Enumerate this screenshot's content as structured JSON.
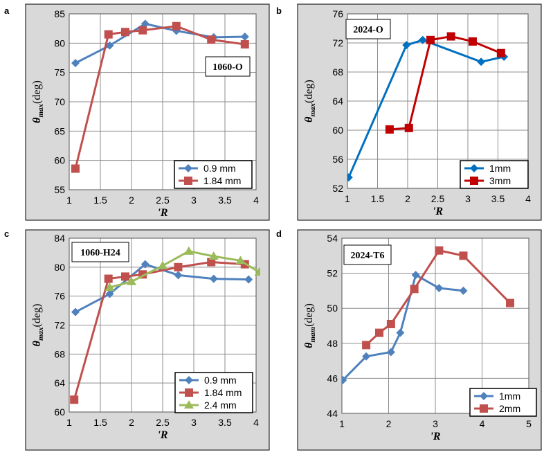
{
  "chart_data": [
    {
      "type": "line",
      "panel_letter": "a",
      "tag": "1060-O",
      "xlabel": "'R",
      "ylabel_symbol": "θ",
      "ylabel_sub": "max",
      "ylabel_unit": "(deg)",
      "xlim": [
        1,
        4
      ],
      "ylim": [
        55,
        85
      ],
      "xticks": [
        "1",
        "1.5",
        "2",
        "2.5",
        "3",
        "3.5",
        "4"
      ],
      "xtick_values": [
        1,
        1.5,
        2,
        2.5,
        3,
        3.5,
        4
      ],
      "yticks": [
        "55",
        "60",
        "65",
        "70",
        "75",
        "80",
        "85"
      ],
      "ytick_values": [
        55,
        60,
        65,
        70,
        75,
        80,
        85
      ],
      "legend_position": "bottom-right",
      "series": [
        {
          "name": "0.9 mm",
          "color": "#4f81bd",
          "marker": "diamond",
          "x": [
            1.1,
            1.65,
            2.22,
            2.72,
            3.32,
            3.82
          ],
          "y": [
            76.6,
            79.6,
            83.3,
            82.1,
            81.0,
            81.1
          ]
        },
        {
          "name": "1.84 mm",
          "color": "#c0504d",
          "marker": "square",
          "x": [
            1.1,
            1.63,
            1.9,
            2.18,
            2.72,
            3.28,
            3.82
          ],
          "y": [
            58.6,
            81.5,
            81.9,
            82.2,
            82.9,
            80.6,
            79.8
          ]
        }
      ]
    },
    {
      "type": "line",
      "panel_letter": "b",
      "tag": "2024-O",
      "xlabel": "'R",
      "ylabel_symbol": "θ",
      "ylabel_sub": "max",
      "ylabel_unit": "(deg)",
      "xlim": [
        1,
        4
      ],
      "ylim": [
        52,
        76
      ],
      "xticks": [
        "1",
        "1.5",
        "2",
        "2.5",
        "3",
        "3.5",
        "4"
      ],
      "xtick_values": [
        1,
        1.5,
        2,
        2.5,
        3,
        3.5,
        4
      ],
      "yticks": [
        "52",
        "56",
        "60",
        "64",
        "68",
        "72",
        "76"
      ],
      "ytick_values": [
        52,
        56,
        60,
        64,
        68,
        72,
        76
      ],
      "legend_position": "bottom-right",
      "series": [
        {
          "name": "1mm",
          "color": "#0070c0",
          "marker": "diamond",
          "x": [
            1.02,
            1.98,
            2.25,
            3.22,
            3.6
          ],
          "y": [
            53.5,
            71.7,
            72.4,
            69.4,
            70.1
          ]
        },
        {
          "name": "3mm",
          "color": "#c00000",
          "marker": "square",
          "x": [
            1.7,
            2.02,
            2.38,
            2.72,
            3.08,
            3.55
          ],
          "y": [
            60.1,
            60.3,
            72.4,
            72.9,
            72.2,
            70.6
          ]
        }
      ]
    },
    {
      "type": "line",
      "panel_letter": "c",
      "tag": "1060-H24",
      "xlabel": "'R",
      "ylabel_symbol": "θ",
      "ylabel_sub": "max",
      "ylabel_unit": "(deg)",
      "xlim": [
        1,
        4
      ],
      "ylim": [
        60,
        84
      ],
      "xticks": [
        "1",
        "1.5",
        "2",
        "2.5",
        "3",
        "3.5",
        "4"
      ],
      "xtick_values": [
        1,
        1.5,
        2,
        2.5,
        3,
        3.5,
        4
      ],
      "yticks": [
        "60",
        "64",
        "68",
        "72",
        "76",
        "80",
        "84"
      ],
      "ytick_values": [
        60,
        64,
        68,
        72,
        76,
        80,
        84
      ],
      "legend_position": "bottom-right",
      "series": [
        {
          "name": "0.9 mm",
          "color": "#4f81bd",
          "marker": "diamond",
          "x": [
            1.1,
            1.65,
            2.22,
            2.75,
            3.32,
            3.88
          ],
          "y": [
            73.8,
            76.3,
            80.4,
            78.9,
            78.4,
            78.3
          ]
        },
        {
          "name": "1.84 mm",
          "color": "#c0504d",
          "marker": "square",
          "x": [
            1.08,
            1.63,
            1.9,
            2.18,
            2.75,
            3.28,
            3.82
          ],
          "y": [
            61.7,
            78.4,
            78.7,
            79.0,
            80.0,
            80.7,
            80.4
          ]
        },
        {
          "name": "2.4 mm",
          "color": "#9bbb59",
          "marker": "triangle",
          "x": [
            1.65,
            2.0,
            2.5,
            2.92,
            3.32,
            3.75,
            4.05
          ],
          "y": [
            77.2,
            78.0,
            80.2,
            82.2,
            81.5,
            80.9,
            79.3
          ]
        }
      ]
    },
    {
      "type": "line",
      "panel_letter": "d",
      "tag": "2024-T6",
      "xlabel": "'R",
      "ylabel_symbol": "θ",
      "ylabel_sub": "mam",
      "ylabel_unit": "(deg)",
      "xlim": [
        1,
        5
      ],
      "ylim": [
        44,
        54
      ],
      "xticks": [
        "1",
        "2",
        "3",
        "4",
        "5"
      ],
      "xtick_values": [
        1,
        2,
        3,
        4,
        5
      ],
      "yticks": [
        "44",
        "46",
        "48",
        "50",
        "52",
        "54"
      ],
      "ytick_values": [
        44,
        46,
        48,
        50,
        52,
        54
      ],
      "legend_position": "bottom-left",
      "series": [
        {
          "name": "1mm",
          "color": "#4f81bd",
          "marker": "diamond",
          "x": [
            1.02,
            1.52,
            2.05,
            2.25,
            2.58,
            3.08,
            3.6
          ],
          "y": [
            45.9,
            47.25,
            47.5,
            48.6,
            51.9,
            51.15,
            51.0
          ]
        },
        {
          "name": "2mm",
          "color": "#c0504d",
          "marker": "square",
          "x": [
            1.52,
            1.8,
            2.05,
            2.55,
            3.08,
            3.6,
            4.6
          ],
          "y": [
            47.9,
            48.6,
            49.1,
            51.1,
            53.3,
            53.0,
            50.3
          ]
        }
      ]
    }
  ]
}
